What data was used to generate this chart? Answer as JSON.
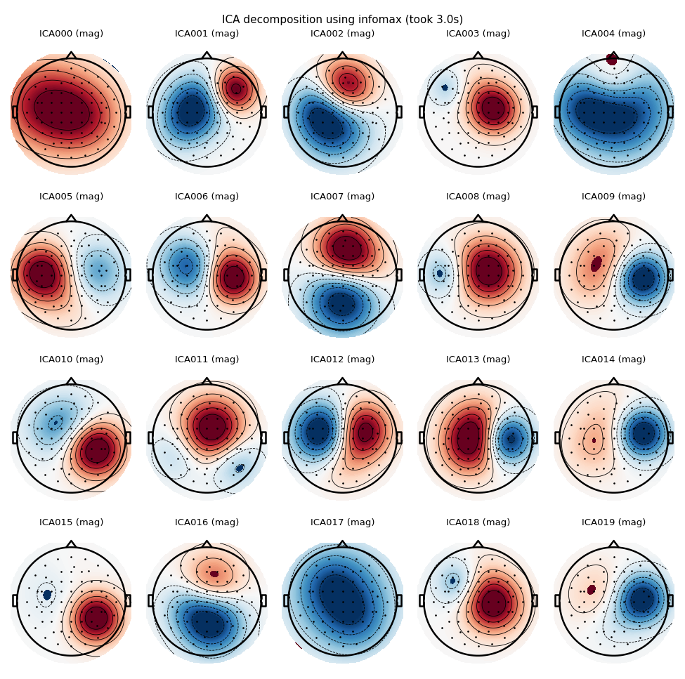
{
  "title": "ICA decomposition using infomax (took 3.0s)",
  "n_components": 20,
  "n_cols": 5,
  "n_rows": 4,
  "component_labels": [
    "ICA000 (mag)",
    "ICA001 (mag)",
    "ICA002 (mag)",
    "ICA003 (mag)",
    "ICA004 (mag)",
    "ICA005 (mag)",
    "ICA006 (mag)",
    "ICA007 (mag)",
    "ICA008 (mag)",
    "ICA009 (mag)",
    "ICA010 (mag)",
    "ICA011 (mag)",
    "ICA012 (mag)",
    "ICA013 (mag)",
    "ICA014 (mag)",
    "ICA015 (mag)",
    "ICA016 (mag)",
    "ICA017 (mag)",
    "ICA018 (mag)",
    "ICA019 (mag)"
  ],
  "background_color": "#ffffff",
  "title_fontsize": 11,
  "label_fontsize": 9.5
}
